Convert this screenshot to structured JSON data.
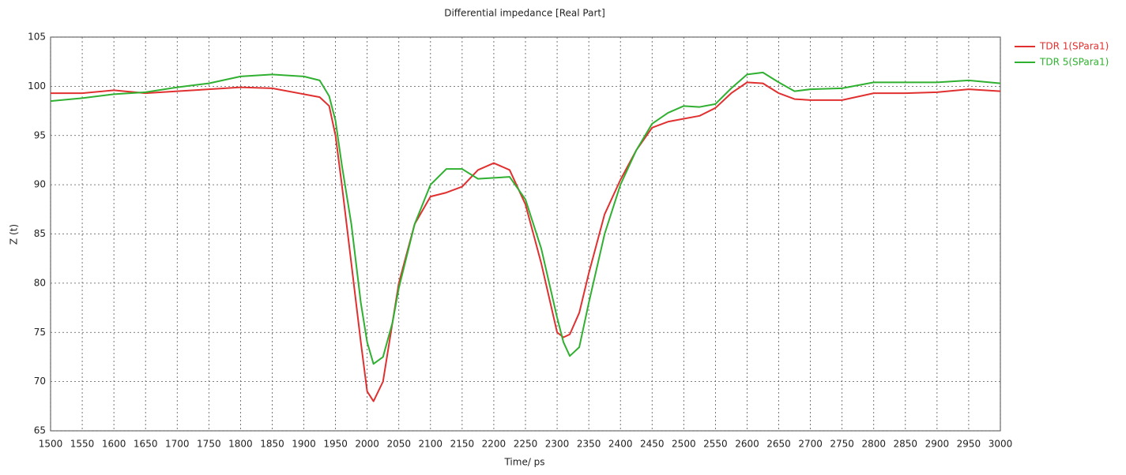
{
  "chart_data": {
    "type": "line",
    "title": "Differential impedance [Real Part]",
    "x_label": "Time/ ps",
    "y_label": "Z (t)",
    "x": [
      1500,
      1550,
      1600,
      1650,
      1700,
      1750,
      1800,
      1850,
      1900,
      1925,
      1940,
      1950,
      1960,
      1975,
      1990,
      2000,
      2010,
      2025,
      2040,
      2050,
      2075,
      2100,
      2125,
      2150,
      2175,
      2200,
      2225,
      2250,
      2275,
      2300,
      2310,
      2320,
      2335,
      2350,
      2375,
      2400,
      2425,
      2450,
      2475,
      2500,
      2525,
      2550,
      2575,
      2600,
      2625,
      2650,
      2675,
      2700,
      2750,
      2800,
      2850,
      2900,
      2950,
      3000
    ],
    "series": [
      {
        "name": "TDR 1(SPara1)",
        "color": "#e03030",
        "values": [
          99.3,
          99.3,
          99.6,
          99.3,
          99.5,
          99.7,
          99.9,
          99.8,
          99.2,
          98.9,
          98,
          95,
          90,
          82,
          74,
          69,
          68,
          70,
          76,
          80,
          86,
          88.8,
          89.2,
          89.8,
          91.5,
          92.2,
          91.5,
          88,
          82,
          75,
          74.5,
          74.8,
          77,
          81,
          87,
          90.5,
          93.5,
          95.8,
          96.4,
          96.7,
          97.0,
          97.8,
          99.3,
          100.4,
          100.3,
          99.3,
          98.7,
          98.6,
          98.6,
          99.3,
          99.3,
          99.4,
          99.7,
          99.5
        ]
      },
      {
        "name": "TDR 5(SPara1)",
        "color": "#30b030",
        "values": [
          98.5,
          98.8,
          99.2,
          99.4,
          99.9,
          100.3,
          101.0,
          101.2,
          101.0,
          100.6,
          99,
          96.5,
          92,
          86,
          78,
          74,
          71.8,
          72.5,
          76,
          79.5,
          86,
          90,
          91.6,
          91.6,
          90.6,
          90.7,
          90.8,
          88.5,
          83.5,
          76.5,
          74,
          72.6,
          73.5,
          78,
          85,
          90,
          93.5,
          96.2,
          97.3,
          98.0,
          97.9,
          98.2,
          99.8,
          101.2,
          101.4,
          100.4,
          99.5,
          99.7,
          99.8,
          100.4,
          100.4,
          100.4,
          100.6,
          100.3
        ]
      }
    ],
    "xlim": [
      1500,
      3000
    ],
    "xticks": [
      1500,
      1550,
      1600,
      1650,
      1700,
      1750,
      1800,
      1850,
      1900,
      1950,
      2000,
      2050,
      2100,
      2150,
      2200,
      2250,
      2300,
      2350,
      2400,
      2450,
      2500,
      2550,
      2600,
      2650,
      2700,
      2750,
      2800,
      2850,
      2900,
      2950,
      3000
    ],
    "ylim": [
      65,
      105
    ],
    "yticks": [
      65,
      70,
      75,
      80,
      85,
      90,
      95,
      100,
      105
    ],
    "grid": true,
    "legend": "outside-top-right"
  }
}
